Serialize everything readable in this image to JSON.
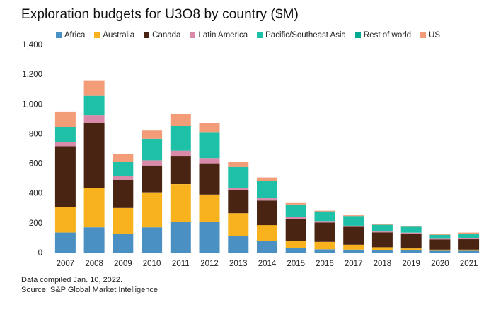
{
  "chart_data": {
    "type": "bar",
    "stacked": true,
    "title": "Exploration budgets for U3O8 by country ($M)",
    "xlabel": "",
    "ylabel": "",
    "ylim": [
      0,
      1400
    ],
    "yticks": [
      0,
      200,
      400,
      600,
      800,
      1000,
      1200,
      1400
    ],
    "ytick_labels": [
      "0",
      "200",
      "400",
      "600",
      "800",
      "1,000",
      "1,200",
      "1,400"
    ],
    "grid": false,
    "legend_position": "top",
    "categories": [
      "2007",
      "2008",
      "2009",
      "2010",
      "2011",
      "2012",
      "2013",
      "2014",
      "2015",
      "2016",
      "2017",
      "2018",
      "2019",
      "2020",
      "2021"
    ],
    "series": [
      {
        "name": "Africa",
        "color": "#4a90c2",
        "values": [
          135,
          170,
          125,
          170,
          205,
          205,
          110,
          78,
          30,
          22,
          20,
          18,
          18,
          12,
          12
        ]
      },
      {
        "name": "Australia",
        "color": "#f7b21e",
        "values": [
          170,
          265,
          175,
          235,
          255,
          185,
          155,
          107,
          48,
          50,
          33,
          18,
          10,
          8,
          8
        ]
      },
      {
        "name": "Canada",
        "color": "#4a2413",
        "values": [
          410,
          435,
          190,
          180,
          190,
          210,
          155,
          165,
          150,
          130,
          120,
          100,
          100,
          68,
          70
        ]
      },
      {
        "name": "Latin America",
        "color": "#d98aa8",
        "values": [
          30,
          55,
          25,
          35,
          35,
          35,
          15,
          15,
          10,
          10,
          8,
          6,
          6,
          5,
          5
        ]
      },
      {
        "name": "Pacific/Southeast Asia",
        "color": "#1ec1a7",
        "values": [
          100,
          130,
          95,
          145,
          165,
          175,
          140,
          115,
          85,
          65,
          65,
          45,
          40,
          27,
          30
        ]
      },
      {
        "name": "Rest of world",
        "color": "#00a98f",
        "values": [
          0,
          0,
          0,
          0,
          0,
          0,
          0,
          0,
          0,
          0,
          0,
          0,
          0,
          0,
          0
        ]
      },
      {
        "name": "US",
        "color": "#f39c78",
        "values": [
          100,
          100,
          50,
          60,
          85,
          60,
          35,
          25,
          10,
          5,
          5,
          5,
          5,
          5,
          10
        ]
      }
    ]
  },
  "footnotes": {
    "line1": "Data compiled Jan. 10, 2022.",
    "line2": "Source: S&P Global Market Intelligence"
  }
}
